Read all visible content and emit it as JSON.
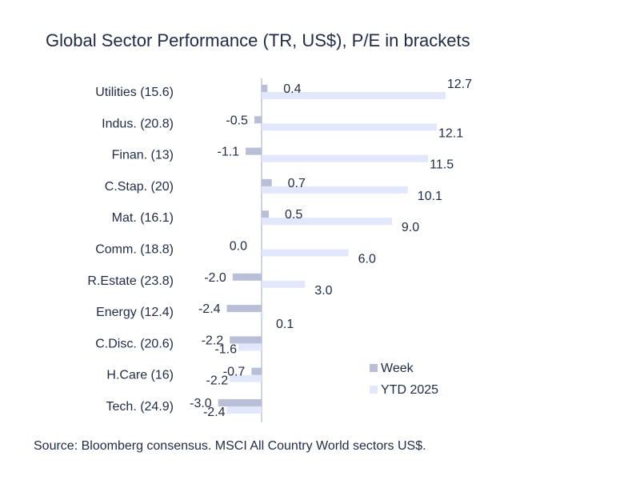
{
  "chart_data": {
    "type": "bar",
    "orientation": "horizontal",
    "title": "Global Sector Performance (TR, US$), P/E in brackets",
    "categories": [
      "Utilities (15.6)",
      "Indus. (20.8)",
      "Finan. (13)",
      "C.Stap. (20)",
      "Mat. (16.1)",
      "Comm. (18.8)",
      "R.Estate (23.8)",
      "Energy (12.4)",
      "C.Disc. (20.6)",
      "H.Care (16)",
      "Tech. (24.9)"
    ],
    "series": [
      {
        "name": "Week",
        "color": "#b9bfd6",
        "values": [
          0.4,
          -0.5,
          -1.1,
          0.7,
          0.5,
          0.0,
          -2.0,
          -2.4,
          -2.2,
          -0.7,
          -3.0
        ],
        "labels": [
          "0.4",
          "-0.5",
          "-1.1",
          "0.7",
          "0.5",
          "0.0",
          "-2.0",
          "-2.4",
          "-2.2",
          "-0.7",
          "-3.0"
        ]
      },
      {
        "name": "YTD 2025",
        "color": "#e3e7fb",
        "values": [
          12.7,
          12.1,
          11.5,
          10.1,
          9.0,
          6.0,
          3.0,
          0.1,
          -1.6,
          -2.2,
          -2.4
        ],
        "labels": [
          "12.7",
          "12.1",
          "11.5",
          "10.1",
          "9.0",
          "6.0",
          "3.0",
          "0.1",
          "-1.6",
          "-2.2",
          "-2.4"
        ]
      }
    ],
    "xlim": [
      -3.0,
      12.7
    ],
    "legend": "bottom-right",
    "grid": false
  },
  "source": "Source: Bloomberg consensus. MSCI All Country World sectors US$."
}
